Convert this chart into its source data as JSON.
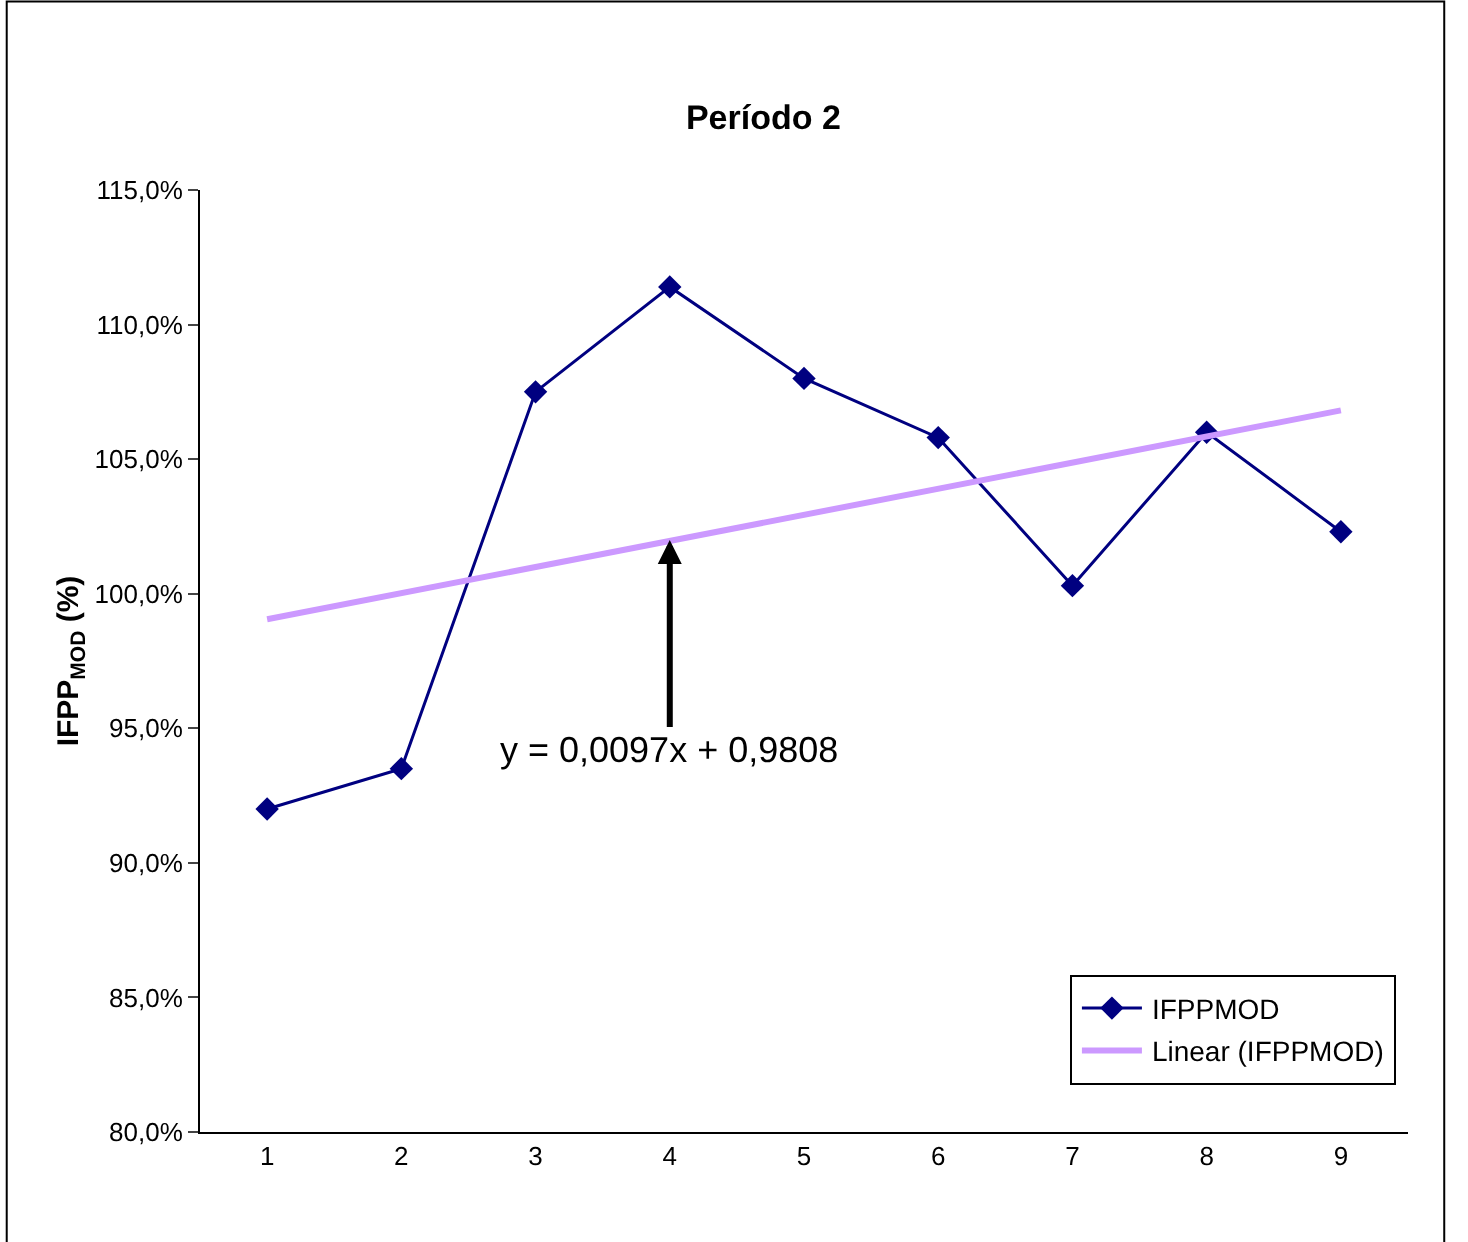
{
  "chart_data": {
    "type": "line",
    "title": "Período 2",
    "ylabel": "IFPP$_{MOD}$ (%)",
    "categories": [
      "1",
      "2",
      "3",
      "4",
      "5",
      "6",
      "7",
      "8",
      "9"
    ],
    "series": [
      {
        "name": "IFPPMOD",
        "color": "#000080",
        "values": [
          92.0,
          93.5,
          107.5,
          111.4,
          108.0,
          105.8,
          100.3,
          106.0,
          102.3
        ],
        "marker": "diamond"
      },
      {
        "name": "Linear (IFPPMOD)",
        "type": "line",
        "color": "#cc99ff",
        "x": [
          "1",
          "9"
        ],
        "values": [
          99.05,
          106.81
        ],
        "marker": "none"
      }
    ],
    "ylim": [
      80,
      115
    ],
    "yticks": [
      {
        "value": 80,
        "label": "80,0%"
      },
      {
        "value": 85,
        "label": "85,0%"
      },
      {
        "value": 90,
        "label": "90,0%"
      },
      {
        "value": 95,
        "label": "95,0%"
      },
      {
        "value": 100,
        "label": "100,0%"
      },
      {
        "value": 105,
        "label": "105,0%"
      },
      {
        "value": 110,
        "label": "110,0%"
      },
      {
        "value": 115,
        "label": "115,0%"
      }
    ],
    "annotations": [
      {
        "text": "y = 0,0097x + 0,9808",
        "x": "4",
        "y": 102.0
      }
    ],
    "grid": false,
    "legend": "bottom right"
  }
}
